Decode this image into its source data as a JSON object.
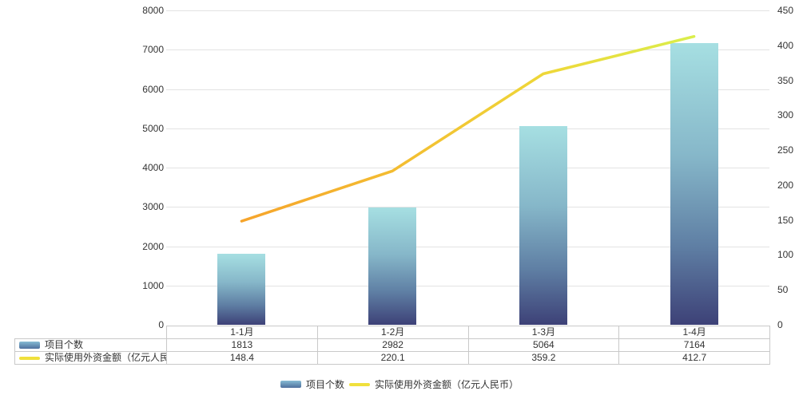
{
  "chart_data": {
    "type": "combo",
    "title": "",
    "categories": [
      "1-1月",
      "1-2月",
      "1-3月",
      "1-4月"
    ],
    "series": [
      {
        "name": "项目个数",
        "type": "bar",
        "axis": "left",
        "values": [
          1813,
          2982,
          5064,
          7164
        ]
      },
      {
        "name": "实际使用外资金额（亿元人民币）",
        "type": "line",
        "axis": "right",
        "values": [
          148.4,
          220.1,
          359.2,
          412.7
        ]
      }
    ],
    "left_axis": {
      "min": 0,
      "max": 8000,
      "step": 1000,
      "tick_labels": [
        "0",
        "1000",
        "2000",
        "3000",
        "4000",
        "5000",
        "6000",
        "7000",
        "8000"
      ]
    },
    "right_axis": {
      "min": 0,
      "max": 450,
      "step": 50,
      "tick_labels": [
        "0",
        "50",
        "100",
        "150",
        "200",
        "250",
        "300",
        "350",
        "400",
        "450"
      ]
    },
    "grid": true,
    "legend_position": "bottom",
    "data_table_shown": true
  },
  "colors": {
    "bar_top": "#a6dfe2",
    "bar_upper_mid": "#86b7c9",
    "bar_lower_mid": "#5f7fa4",
    "bar_bottom": "#3d4177",
    "line_start": "#f6a42b",
    "line_mid1": "#f3bd31",
    "line_mid2": "#eed839",
    "line_end": "#daee4b",
    "grid_line": "#e3e3e3",
    "table_border": "#c9c9c9",
    "text": "#333333",
    "legend_swatch_top": "#87bcd4",
    "legend_swatch_bottom": "#4e6f9d",
    "legend_line": "#f0e03c"
  }
}
